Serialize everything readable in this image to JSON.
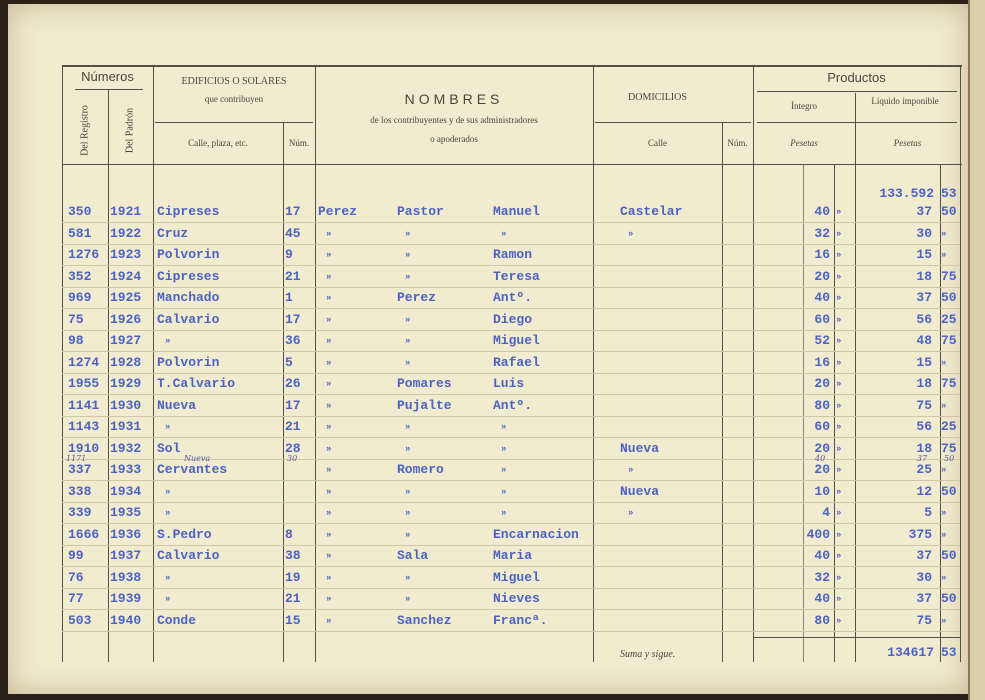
{
  "header": {
    "numeros": "Números",
    "del_registro": "Del Registro",
    "del_padron": "Del Padrón",
    "edificios": "EDIFICIOS O SOLARES",
    "que_contribuyen": "que contribuyen",
    "calle_plaza": "Calle, plaza, etc.",
    "num": "Núm.",
    "nombres": "NOMBRES",
    "nombres_sub1": "de los contribuyentes y de sus administradores",
    "nombres_sub2": "o apoderados",
    "domicilios": "DOMICILIOS",
    "dom_calle": "Calle",
    "dom_num": "Núm.",
    "productos": "Productos",
    "integro": "Íntegro",
    "liquido": "Líquido imponible",
    "pesetas1": "Pesetas",
    "pesetas2": "Pesetas"
  },
  "carried_forward": {
    "pesetas": "133.592",
    "cents": "53"
  },
  "rows": [
    {
      "reg": "350",
      "pad": "1921",
      "calle": "Cipreses",
      "num": "17",
      "ap1": "Perez",
      "ap2": "Pastor",
      "nom": "Manuel",
      "dom": "Castelar",
      "int": "40",
      "int_c": "»",
      "liq": "37",
      "liq_c": "50"
    },
    {
      "reg": "581",
      "pad": "1922",
      "calle": "Cruz",
      "num": "45",
      "ap1": "»",
      "ap2": "»",
      "nom": "»",
      "dom": "»",
      "int": "32",
      "int_c": "»",
      "liq": "30",
      "liq_c": "»"
    },
    {
      "reg": "1276",
      "pad": "1923",
      "calle": "Polvorin",
      "num": "9",
      "ap1": "»",
      "ap2": "»",
      "nom": "Ramon",
      "dom": "",
      "int": "16",
      "int_c": "»",
      "liq": "15",
      "liq_c": "»"
    },
    {
      "reg": "352",
      "pad": "1924",
      "calle": "Cipreses",
      "num": "21",
      "ap1": "»",
      "ap2": "»",
      "nom": "Teresa",
      "dom": "",
      "int": "20",
      "int_c": "»",
      "liq": "18",
      "liq_c": "75"
    },
    {
      "reg": "969",
      "pad": "1925",
      "calle": "Manchado",
      "num": "1",
      "ap1": "»",
      "ap2": "Perez",
      "nom": "Antº.",
      "dom": "",
      "int": "40",
      "int_c": "»",
      "liq": "37",
      "liq_c": "50"
    },
    {
      "reg": "75",
      "pad": "1926",
      "calle": "Calvario",
      "num": "17",
      "ap1": "»",
      "ap2": "»",
      "nom": "Diego",
      "dom": "",
      "int": "60",
      "int_c": "»",
      "liq": "56",
      "liq_c": "25"
    },
    {
      "reg": "98",
      "pad": "1927",
      "calle": "»",
      "num": "36",
      "ap1": "»",
      "ap2": "»",
      "nom": "Miguel",
      "dom": "",
      "int": "52",
      "int_c": "»",
      "liq": "48",
      "liq_c": "75"
    },
    {
      "reg": "1274",
      "pad": "1928",
      "calle": "Polvorin",
      "num": "5",
      "ap1": "»",
      "ap2": "»",
      "nom": "Rafael",
      "dom": "",
      "int": "16",
      "int_c": "»",
      "liq": "15",
      "liq_c": "»"
    },
    {
      "reg": "1955",
      "pad": "1929",
      "calle": "T.Calvario",
      "num": "26",
      "ap1": "»",
      "ap2": "Pomares",
      "nom": "Luis",
      "dom": "",
      "int": "20",
      "int_c": "»",
      "liq": "18",
      "liq_c": "75"
    },
    {
      "reg": "1141",
      "pad": "1930",
      "calle": "Nueva",
      "num": "17",
      "ap1": "»",
      "ap2": "Pujalte",
      "nom": "Antº.",
      "dom": "",
      "int": "80",
      "int_c": "»",
      "liq": "75",
      "liq_c": "»"
    },
    {
      "reg": "1143",
      "pad": "1931",
      "calle": "»",
      "num": "21",
      "ap1": "»",
      "ap2": "»",
      "nom": "»",
      "dom": "",
      "int": "60",
      "int_c": "»",
      "liq": "56",
      "liq_c": "25"
    },
    {
      "reg": "1910",
      "pad": "1932",
      "calle": "Sol",
      "num": "28",
      "ap1": "»",
      "ap2": "»",
      "nom": "»",
      "dom": "Nueva",
      "int": "20",
      "int_c": "»",
      "liq": "18",
      "liq_c": "75"
    },
    {
      "reg": "337",
      "pad": "1933",
      "calle": "Cervantes",
      "num": "",
      "ap1": "»",
      "ap2": "Romero",
      "nom": "»",
      "dom": "»",
      "int": "20",
      "int_c": "»",
      "liq": "25",
      "liq_c": "»"
    },
    {
      "reg": "338",
      "pad": "1934",
      "calle": "»",
      "num": "",
      "ap1": "»",
      "ap2": "»",
      "nom": "»",
      "dom": "Nueva",
      "int": "10",
      "int_c": "»",
      "liq": "12",
      "liq_c": "50"
    },
    {
      "reg": "339",
      "pad": "1935",
      "calle": "»",
      "num": "",
      "ap1": "»",
      "ap2": "»",
      "nom": "»",
      "dom": "»",
      "int": "4",
      "int_c": "»",
      "liq": "5",
      "liq_c": "»"
    },
    {
      "reg": "1666",
      "pad": "1936",
      "calle": "S.Pedro",
      "num": "8",
      "ap1": "»",
      "ap2": "»",
      "nom": "Encarnacion",
      "dom": "",
      "int": "400",
      "int_c": "»",
      "liq": "375",
      "liq_c": "»"
    },
    {
      "reg": "99",
      "pad": "1937",
      "calle": "Calvario",
      "num": "38",
      "ap1": "»",
      "ap2": "Sala",
      "nom": "Maria",
      "dom": "",
      "int": "40",
      "int_c": "»",
      "liq": "37",
      "liq_c": "50"
    },
    {
      "reg": "76",
      "pad": "1938",
      "calle": "»",
      "num": "19",
      "ap1": "»",
      "ap2": "»",
      "nom": "Miguel",
      "dom": "",
      "int": "32",
      "int_c": "»",
      "liq": "30",
      "liq_c": "»"
    },
    {
      "reg": "77",
      "pad": "1939",
      "calle": "»",
      "num": "21",
      "ap1": "»",
      "ap2": "»",
      "nom": "Nieves",
      "dom": "",
      "int": "40",
      "int_c": "»",
      "liq": "37",
      "liq_c": "50"
    },
    {
      "reg": "503",
      "pad": "1940",
      "calle": "Conde",
      "num": "15",
      "ap1": "»",
      "ap2": "Sanchez",
      "nom": "Francª.",
      "dom": "",
      "int": "80",
      "int_c": "»",
      "liq": "75",
      "liq_c": "»"
    }
  ],
  "annotations": {
    "reg_1933": "1171",
    "calle_1933": "Nueva",
    "num_1933": "30",
    "int_1933": "40",
    "liq_1933": "37",
    "liq_c_1933": "50"
  },
  "footer": {
    "label": "Suma y sigue.",
    "pesetas": "134617",
    "cents": "53"
  }
}
